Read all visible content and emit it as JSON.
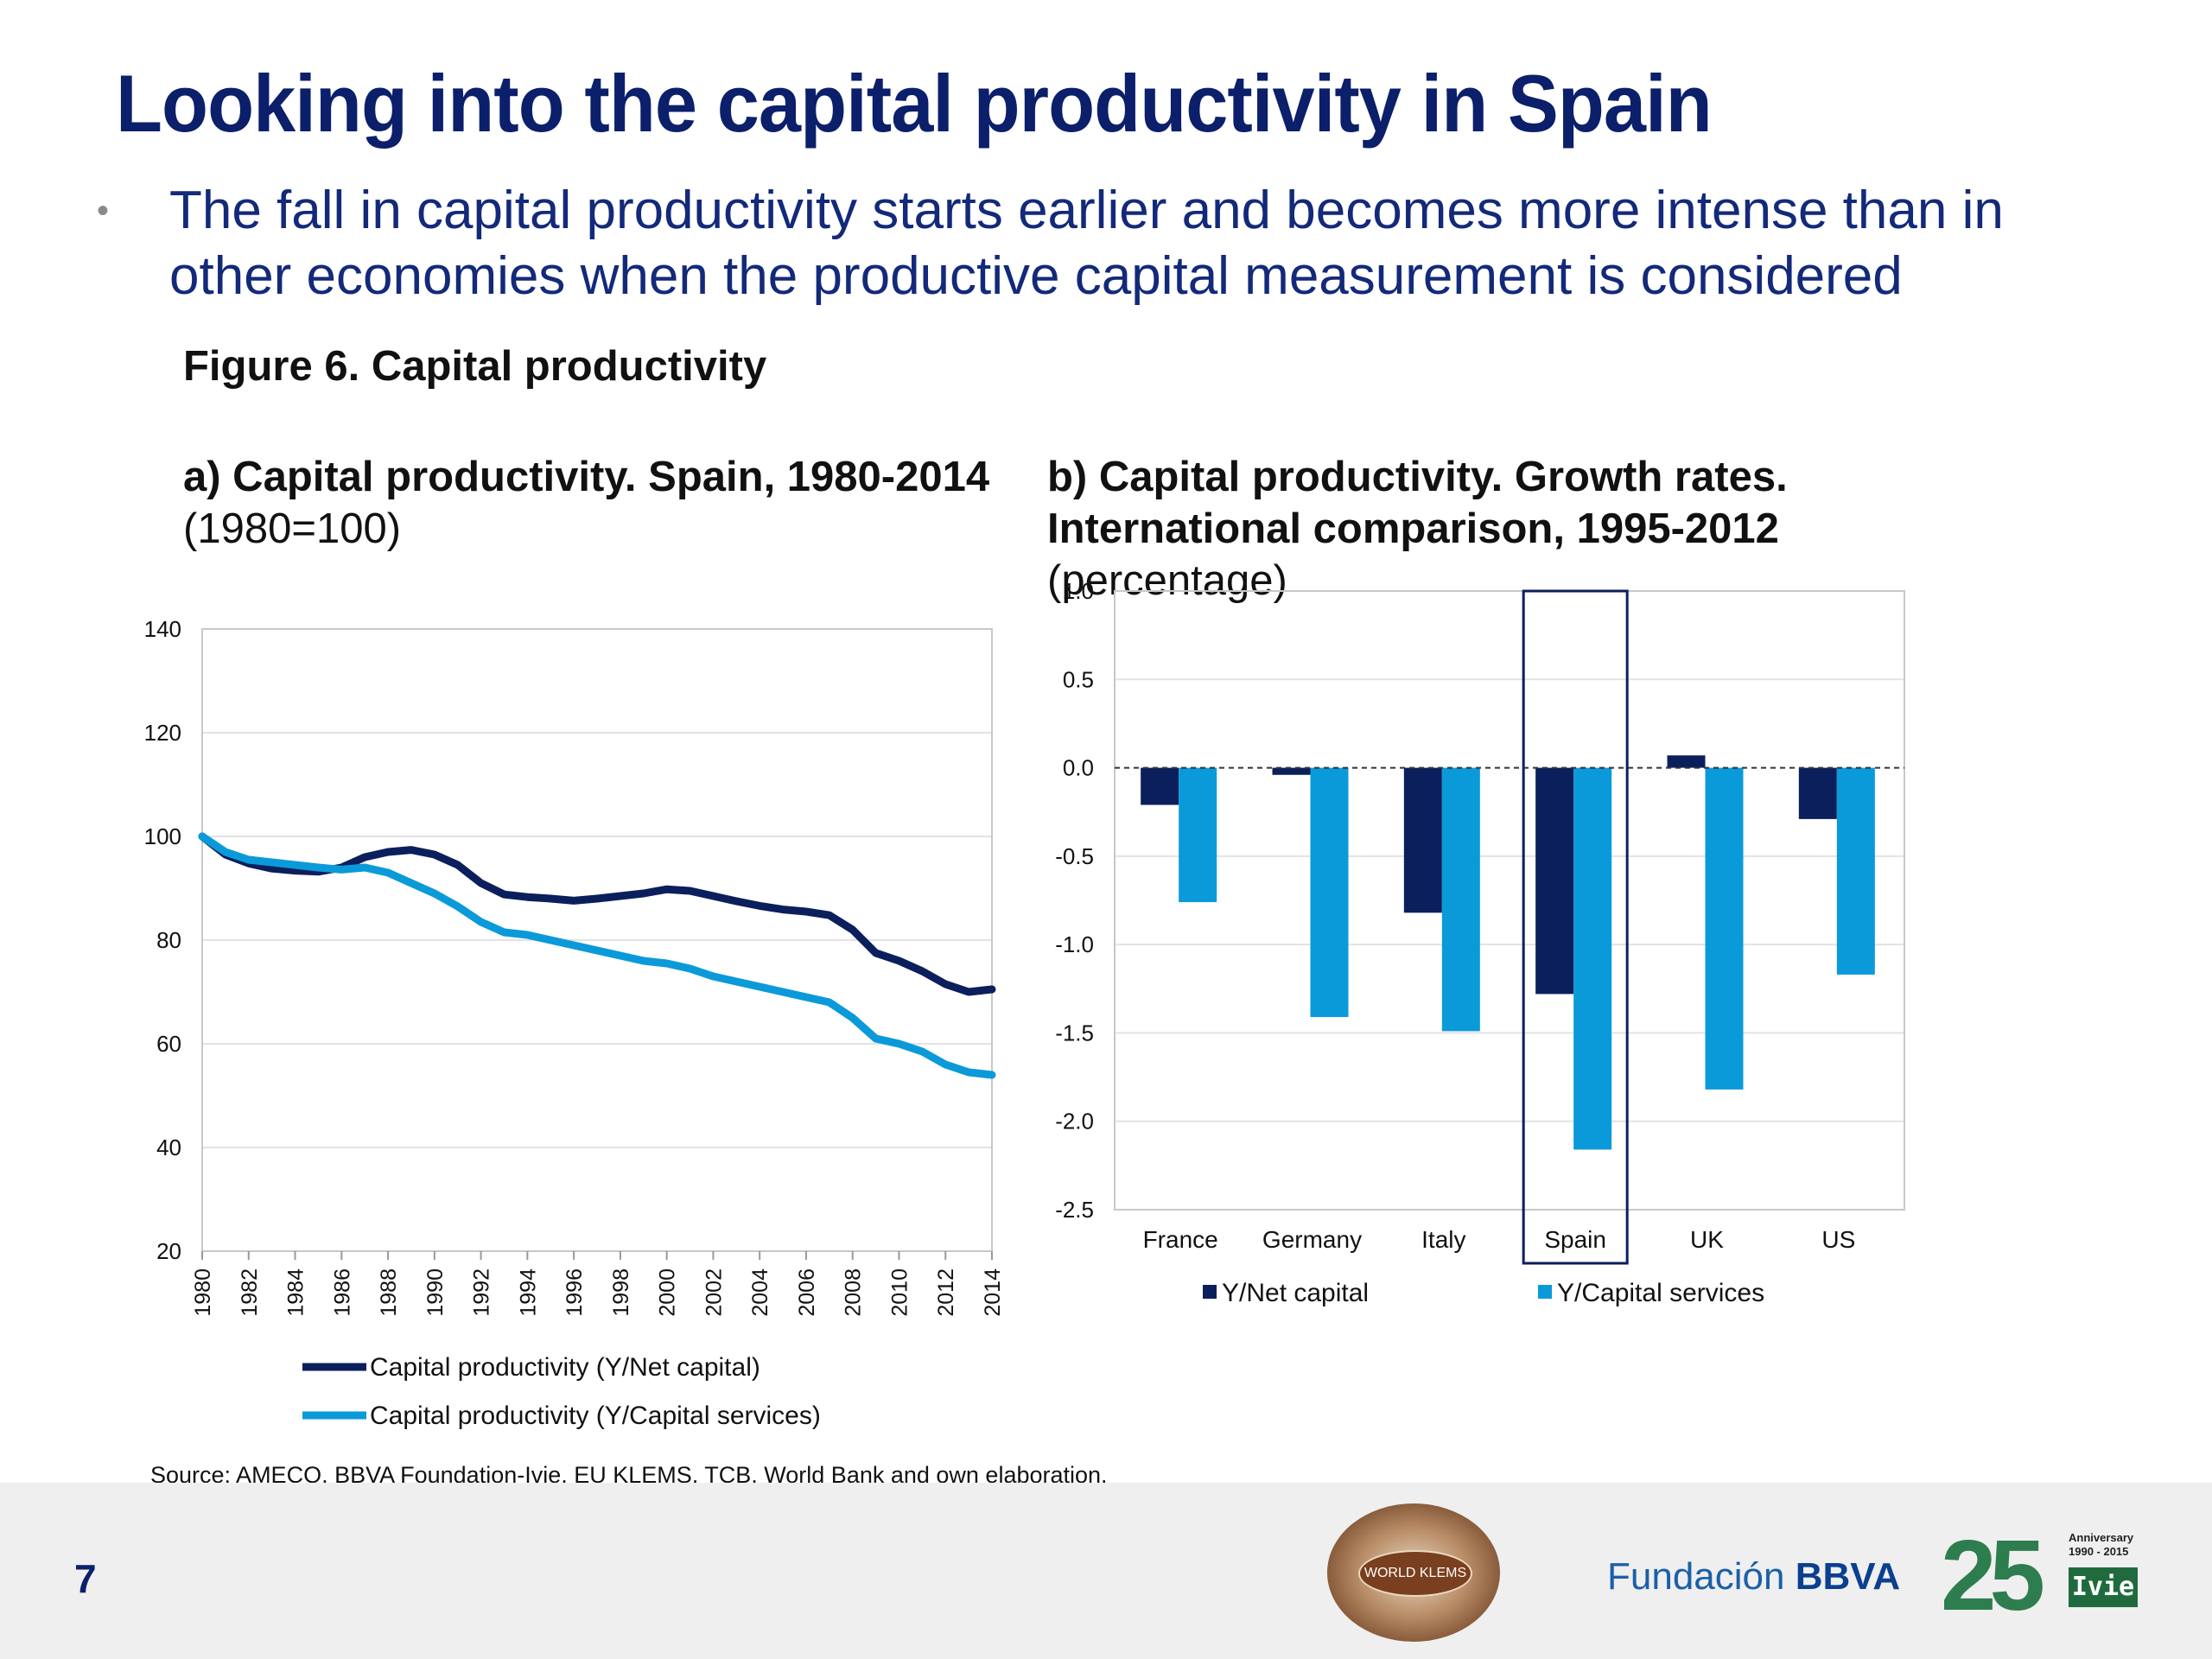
{
  "slide": {
    "title": "Looking into the capital productivity in Spain",
    "bullet": "The fall in capital productivity starts earlier and becomes more intense than in other economies when the productive capital measurement is considered",
    "figure_title": "Figure 6. Capital productivity",
    "source": "Source: AMECO, BBVA Foundation-Ivie, EU KLEMS, TCB, World Bank and own elaboration.",
    "page_number": "7"
  },
  "logos": {
    "world_klems": "WORLD KLEMS",
    "bbva_prefix": "Fundación",
    "bbva_bold": "BBVA",
    "ivie_number": "25",
    "ivie_anniversary": "Anniversary",
    "ivie_years": "1990 - 2015",
    "ivie_name": "Ivie"
  },
  "colors": {
    "dark_series": "#0b1f5c",
    "light_series": "#0b9ad9",
    "title": "#0b1f6b",
    "spain_highlight": "#0b1f5c"
  },
  "chart_data": [
    {
      "type": "line",
      "title": "a) Capital productivity. Spain, 1980-2014",
      "subtitle": "(1980=100)",
      "x": [
        1980,
        1981,
        1982,
        1983,
        1984,
        1985,
        1986,
        1987,
        1988,
        1989,
        1990,
        1991,
        1992,
        1993,
        1994,
        1995,
        1996,
        1997,
        1998,
        1999,
        2000,
        2001,
        2002,
        2003,
        2004,
        2005,
        2006,
        2007,
        2008,
        2009,
        2010,
        2011,
        2012,
        2013,
        2014
      ],
      "x_tick_labels": [
        "1980",
        "1982",
        "1984",
        "1986",
        "1988",
        "1990",
        "1992",
        "1994",
        "1996",
        "1998",
        "2000",
        "2002",
        "2004",
        "2006",
        "2008",
        "2010",
        "2012",
        "2014"
      ],
      "series": [
        {
          "name": "Capital productivity (Y/Net capital)",
          "values": [
            100,
            96.5,
            94.8,
            93.8,
            93.4,
            93.2,
            94,
            96,
            97,
            97.4,
            96.5,
            94.5,
            91,
            88.8,
            88.3,
            88,
            87.6,
            88,
            88.5,
            89,
            89.8,
            89.5,
            88.5,
            87.5,
            86.6,
            85.9,
            85.5,
            84.8,
            82,
            77.5,
            76,
            74,
            71.5,
            70,
            70.5
          ]
        },
        {
          "name": "Capital productivity (Y/Capital services)",
          "values": [
            100,
            97,
            95.5,
            95,
            94.5,
            94,
            93.6,
            94,
            93,
            91,
            89,
            86.5,
            83.5,
            81.5,
            81,
            80,
            79,
            78,
            77,
            76,
            75.5,
            74.5,
            73,
            72,
            71,
            70,
            69,
            68,
            65,
            61,
            60,
            58.5,
            56,
            54.5,
            54
          ]
        }
      ],
      "ylim": [
        20,
        140
      ],
      "y_ticks": [
        "20",
        "40",
        "60",
        "80",
        "100",
        "120",
        "140"
      ],
      "grid": true,
      "legend_placement": "bottom"
    },
    {
      "type": "bar",
      "title": "b) Capital  productivity. Growth rates. International comparison, 1995-2012",
      "subtitle": "(percentage)",
      "categories": [
        "France",
        "Germany",
        "Italy",
        "Spain",
        "UK",
        "US"
      ],
      "series": [
        {
          "name": "Y/Net capital",
          "values": [
            -0.21,
            -0.04,
            -0.82,
            -1.28,
            0.07,
            -0.29
          ]
        },
        {
          "name": "Y/Capital services",
          "values": [
            -0.76,
            -1.41,
            -1.49,
            -2.16,
            -1.82,
            -1.17
          ]
        }
      ],
      "ylim": [
        -2.5,
        1.0
      ],
      "y_ticks": [
        "1.0",
        "0.5",
        "0.0",
        "-0.5",
        "-1.0",
        "-1.5",
        "-2.0",
        "-2.5"
      ],
      "highlight_category": "Spain",
      "zero_line": "dashed",
      "grid": true,
      "legend_placement": "bottom"
    }
  ]
}
